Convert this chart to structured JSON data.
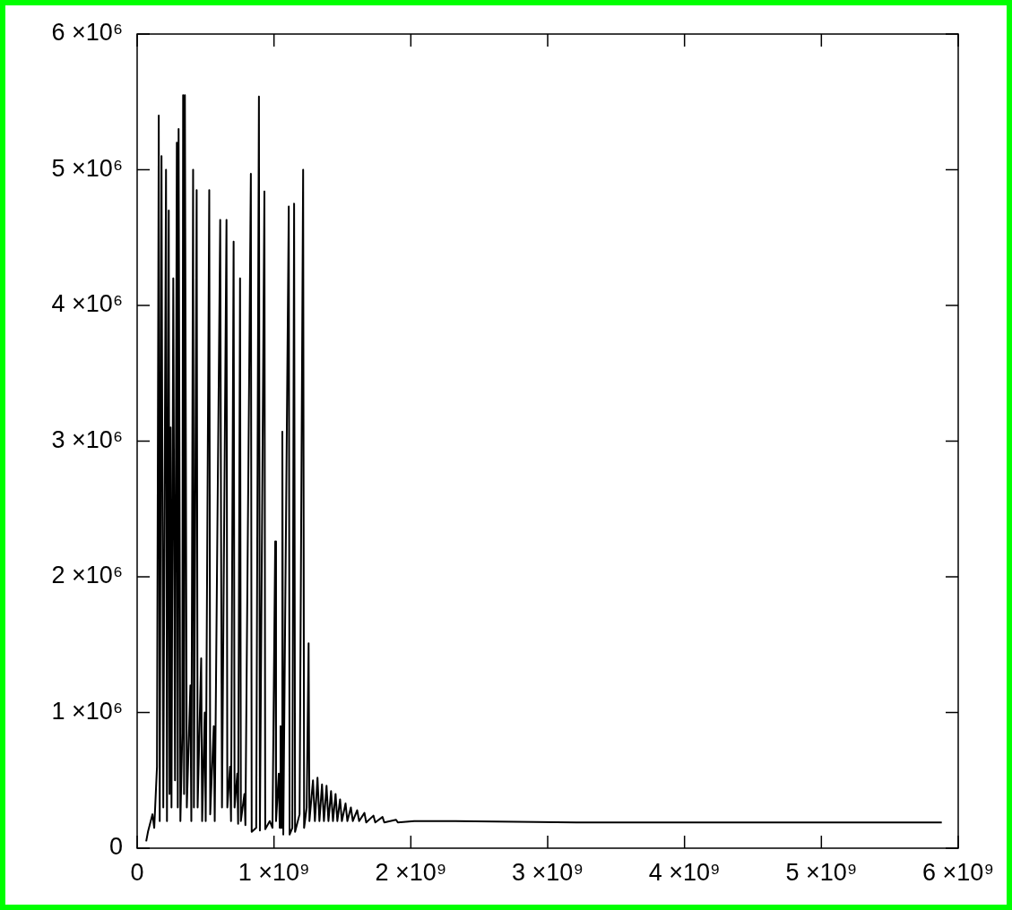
{
  "chart_data": {
    "type": "line",
    "marker": "none",
    "line_style": "solid",
    "legend": false,
    "grid": false,
    "xlim": [
      0,
      6000000000
    ],
    "xticks": [
      0,
      {
        "value": 1000000000,
        "label": "1 ×10⁹"
      },
      {
        "value": 2000000000,
        "label": "2 ×10⁹"
      },
      {
        "value": 3000000000,
        "label": "3 ×10⁹"
      },
      {
        "value": 4000000000,
        "label": "4 ×10⁹"
      },
      {
        "value": 5000000000,
        "label": "5 ×10⁹"
      },
      {
        "value": 6000000000,
        "label": "6 ×10⁹"
      }
    ],
    "ylim": [
      0,
      6000000
    ],
    "yticks": [
      0,
      {
        "value": 1000000,
        "label": "1 ×10⁶"
      },
      {
        "value": 2000000,
        "label": "2 ×10⁶"
      },
      {
        "value": 3000000,
        "label": "3 ×10⁶"
      },
      {
        "value": 4000000,
        "label": "4 ×10⁶"
      },
      {
        "value": 5000000,
        "label": "5 ×10⁶"
      },
      {
        "value": 6000000,
        "label": "6 ×10⁶"
      }
    ],
    "series": [
      {
        "color": "#000000",
        "x": [
          66000000,
          79000000,
          112000000,
          125000000,
          145000000,
          158000000,
          165000000,
          178000000,
          191000000,
          211000000,
          218000000,
          231000000,
          237000000,
          244000000,
          251000000,
          264000000,
          277000000,
          290000000,
          297000000,
          303000000,
          316000000,
          330000000,
          336000000,
          343000000,
          349000000,
          363000000,
          389000000,
          396000000,
          409000000,
          415000000,
          435000000,
          442000000,
          468000000,
          475000000,
          494000000,
          501000000,
          527000000,
          534000000,
          560000000,
          567000000,
          607000000,
          613000000,
          620000000,
          653000000,
          659000000,
          679000000,
          686000000,
          705000000,
          712000000,
          732000000,
          738000000,
          752000000,
          758000000,
          784000000,
          791000000,
          831000000,
          837000000,
          870000000,
          890000000,
          897000000,
          930000000,
          936000000,
          969000000,
          989000000,
          1009000000,
          1015000000,
          1035000000,
          1042000000,
          1048000000,
          1055000000,
          1061000000,
          1068000000,
          1108000000,
          1114000000,
          1134000000,
          1147000000,
          1154000000,
          1187000000,
          1213000000,
          1220000000,
          1239000000,
          1253000000,
          1259000000,
          1285000000,
          1299000000,
          1318000000,
          1332000000,
          1351000000,
          1365000000,
          1384000000,
          1398000000,
          1417000000,
          1431000000,
          1450000000,
          1463000000,
          1483000000,
          1496000000,
          1523000000,
          1536000000,
          1562000000,
          1576000000,
          1608000000,
          1622000000,
          1661000000,
          1674000000,
          1727000000,
          1740000000,
          1793000000,
          1806000000,
          1892000000,
          1905000000,
          2024000000,
          2287000000,
          3210000000,
          5880000000
        ],
        "values": [
          50000,
          120000,
          250000,
          150000,
          600000,
          5400000,
          200000,
          5100000,
          300000,
          5000000,
          200000,
          4700000,
          400000,
          3100000,
          300000,
          4200000,
          500000,
          5200000,
          300000,
          5300000,
          200000,
          850000,
          5550000,
          400000,
          5550000,
          300000,
          1200000,
          200000,
          5000000,
          300000,
          4850000,
          300000,
          1400000,
          200000,
          1000000,
          200000,
          4850000,
          250000,
          900000,
          200000,
          4630000,
          2400000,
          300000,
          4630000,
          300000,
          600000,
          200000,
          4470000,
          300000,
          550000,
          180000,
          4200000,
          200000,
          400000,
          170000,
          4970000,
          120000,
          150000,
          5540000,
          130000,
          4840000,
          140000,
          200000,
          150000,
          2260000,
          200000,
          550000,
          150000,
          900000,
          150000,
          3070000,
          100000,
          4730000,
          100000,
          150000,
          4750000,
          120000,
          250000,
          5000000,
          150000,
          300000,
          1510000,
          200000,
          500000,
          200000,
          520000,
          200000,
          470000,
          200000,
          460000,
          200000,
          420000,
          200000,
          400000,
          200000,
          360000,
          200000,
          330000,
          200000,
          300000,
          200000,
          280000,
          200000,
          260000,
          190000,
          240000,
          190000,
          230000,
          190000,
          210000,
          190000,
          200000,
          200000,
          190000,
          190000
        ]
      }
    ]
  }
}
